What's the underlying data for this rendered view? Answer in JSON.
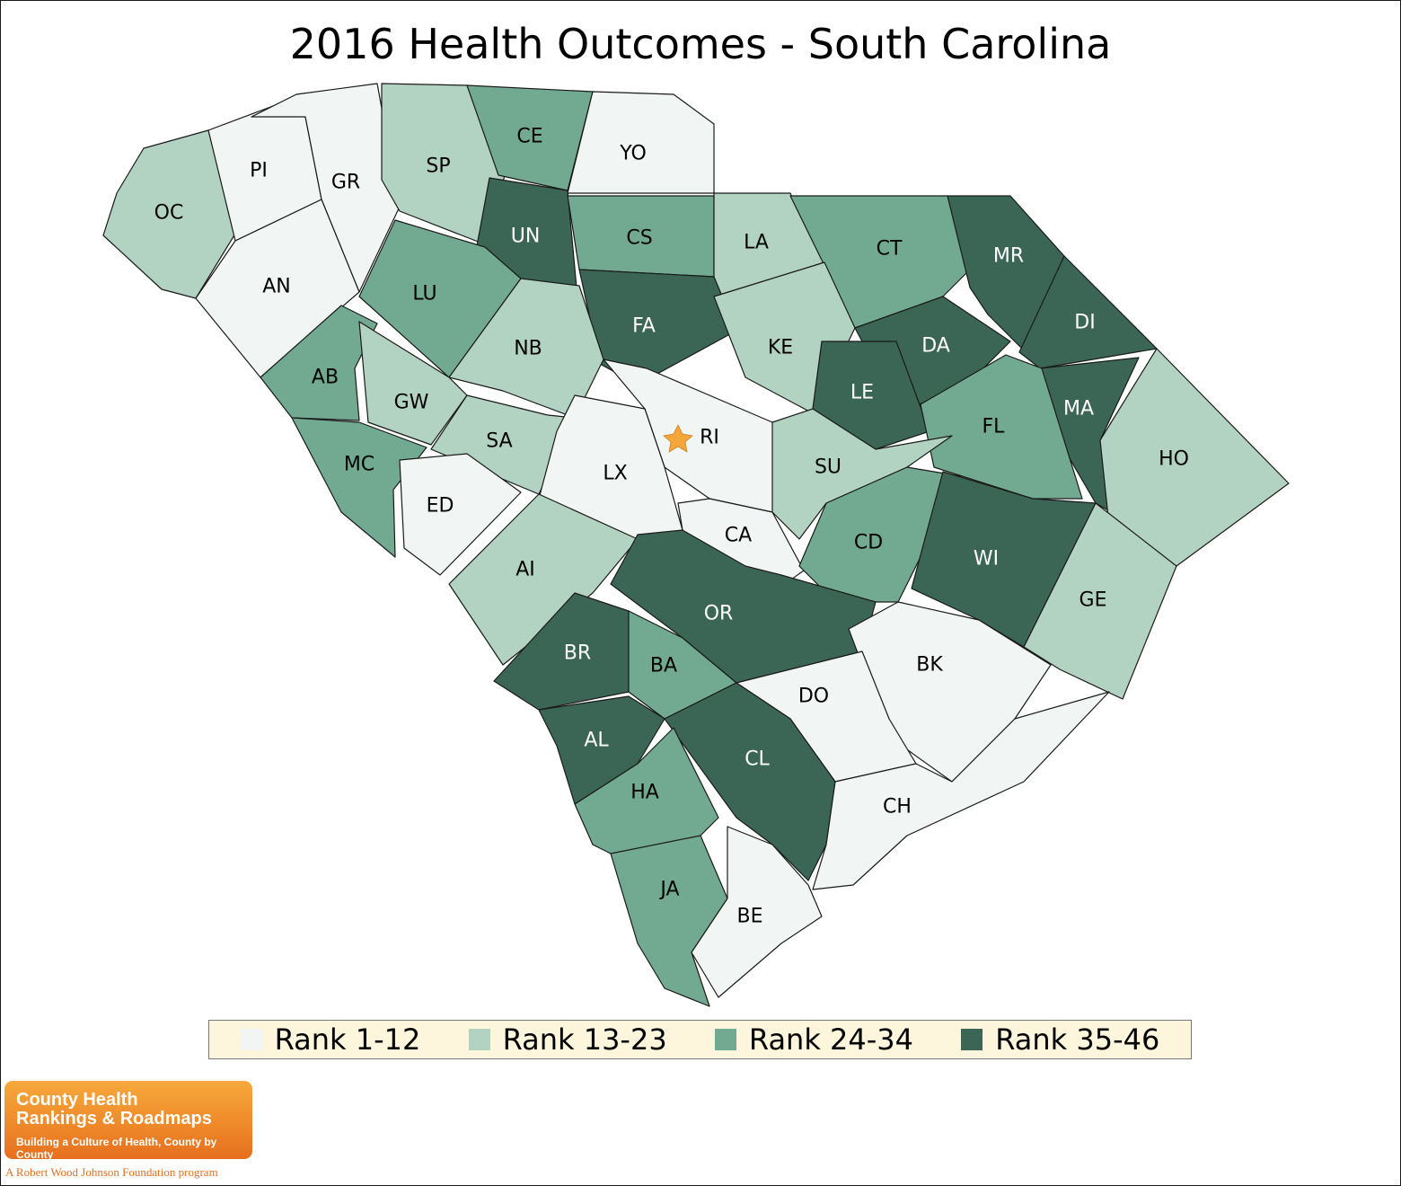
{
  "title": "2016 Health Outcomes - South Carolina",
  "colors": {
    "rank_1_12": "#f1f5f3",
    "rank_13_23": "#b3d3c2",
    "rank_24_34": "#72aa91",
    "rank_35_46": "#3b6656",
    "capital_star": "#f4a53c"
  },
  "legend": {
    "items": [
      {
        "label": "Rank 1-12",
        "color": "#f1f5f3"
      },
      {
        "label": "Rank 13-23",
        "color": "#b3d3c2"
      },
      {
        "label": "Rank 24-34",
        "color": "#72aa91"
      },
      {
        "label": "Rank 35-46",
        "color": "#3b6656"
      }
    ]
  },
  "counties": [
    {
      "abbr": "OC",
      "tier": 2
    },
    {
      "abbr": "PI",
      "tier": 1
    },
    {
      "abbr": "GR",
      "tier": 1
    },
    {
      "abbr": "SP",
      "tier": 2
    },
    {
      "abbr": "CE",
      "tier": 3
    },
    {
      "abbr": "YO",
      "tier": 1
    },
    {
      "abbr": "AN",
      "tier": 1
    },
    {
      "abbr": "UN",
      "tier": 4
    },
    {
      "abbr": "CS",
      "tier": 3
    },
    {
      "abbr": "LA",
      "tier": 2
    },
    {
      "abbr": "CT",
      "tier": 3
    },
    {
      "abbr": "MR",
      "tier": 4
    },
    {
      "abbr": "LU",
      "tier": 3
    },
    {
      "abbr": "FA",
      "tier": 4
    },
    {
      "abbr": "DI",
      "tier": 4
    },
    {
      "abbr": "AB",
      "tier": 3
    },
    {
      "abbr": "NB",
      "tier": 2
    },
    {
      "abbr": "KE",
      "tier": 2
    },
    {
      "abbr": "DA",
      "tier": 4
    },
    {
      "abbr": "GW",
      "tier": 2
    },
    {
      "abbr": "LE",
      "tier": 4
    },
    {
      "abbr": "MA",
      "tier": 4
    },
    {
      "abbr": "SA",
      "tier": 2
    },
    {
      "abbr": "RI",
      "tier": 1
    },
    {
      "abbr": "FL",
      "tier": 3
    },
    {
      "abbr": "MC",
      "tier": 3
    },
    {
      "abbr": "LX",
      "tier": 1
    },
    {
      "abbr": "SU",
      "tier": 2
    },
    {
      "abbr": "HO",
      "tier": 2
    },
    {
      "abbr": "ED",
      "tier": 1
    },
    {
      "abbr": "CA",
      "tier": 1
    },
    {
      "abbr": "CD",
      "tier": 3
    },
    {
      "abbr": "WI",
      "tier": 4
    },
    {
      "abbr": "AI",
      "tier": 2
    },
    {
      "abbr": "GE",
      "tier": 2
    },
    {
      "abbr": "OR",
      "tier": 4
    },
    {
      "abbr": "BR",
      "tier": 4
    },
    {
      "abbr": "BA",
      "tier": 3
    },
    {
      "abbr": "BK",
      "tier": 1
    },
    {
      "abbr": "DO",
      "tier": 1
    },
    {
      "abbr": "AL",
      "tier": 4
    },
    {
      "abbr": "CL",
      "tier": 4
    },
    {
      "abbr": "HA",
      "tier": 3
    },
    {
      "abbr": "CH",
      "tier": 1
    },
    {
      "abbr": "JA",
      "tier": 3
    },
    {
      "abbr": "BE",
      "tier": 1
    }
  ],
  "capital": {
    "icon": "star-icon",
    "county": "RI"
  },
  "logo": {
    "line1": "County Health",
    "line2": "Rankings & Roadmaps",
    "tagline": "Building a Culture of Health, County by County",
    "footer": "A Robert Wood Johnson Foundation program"
  }
}
